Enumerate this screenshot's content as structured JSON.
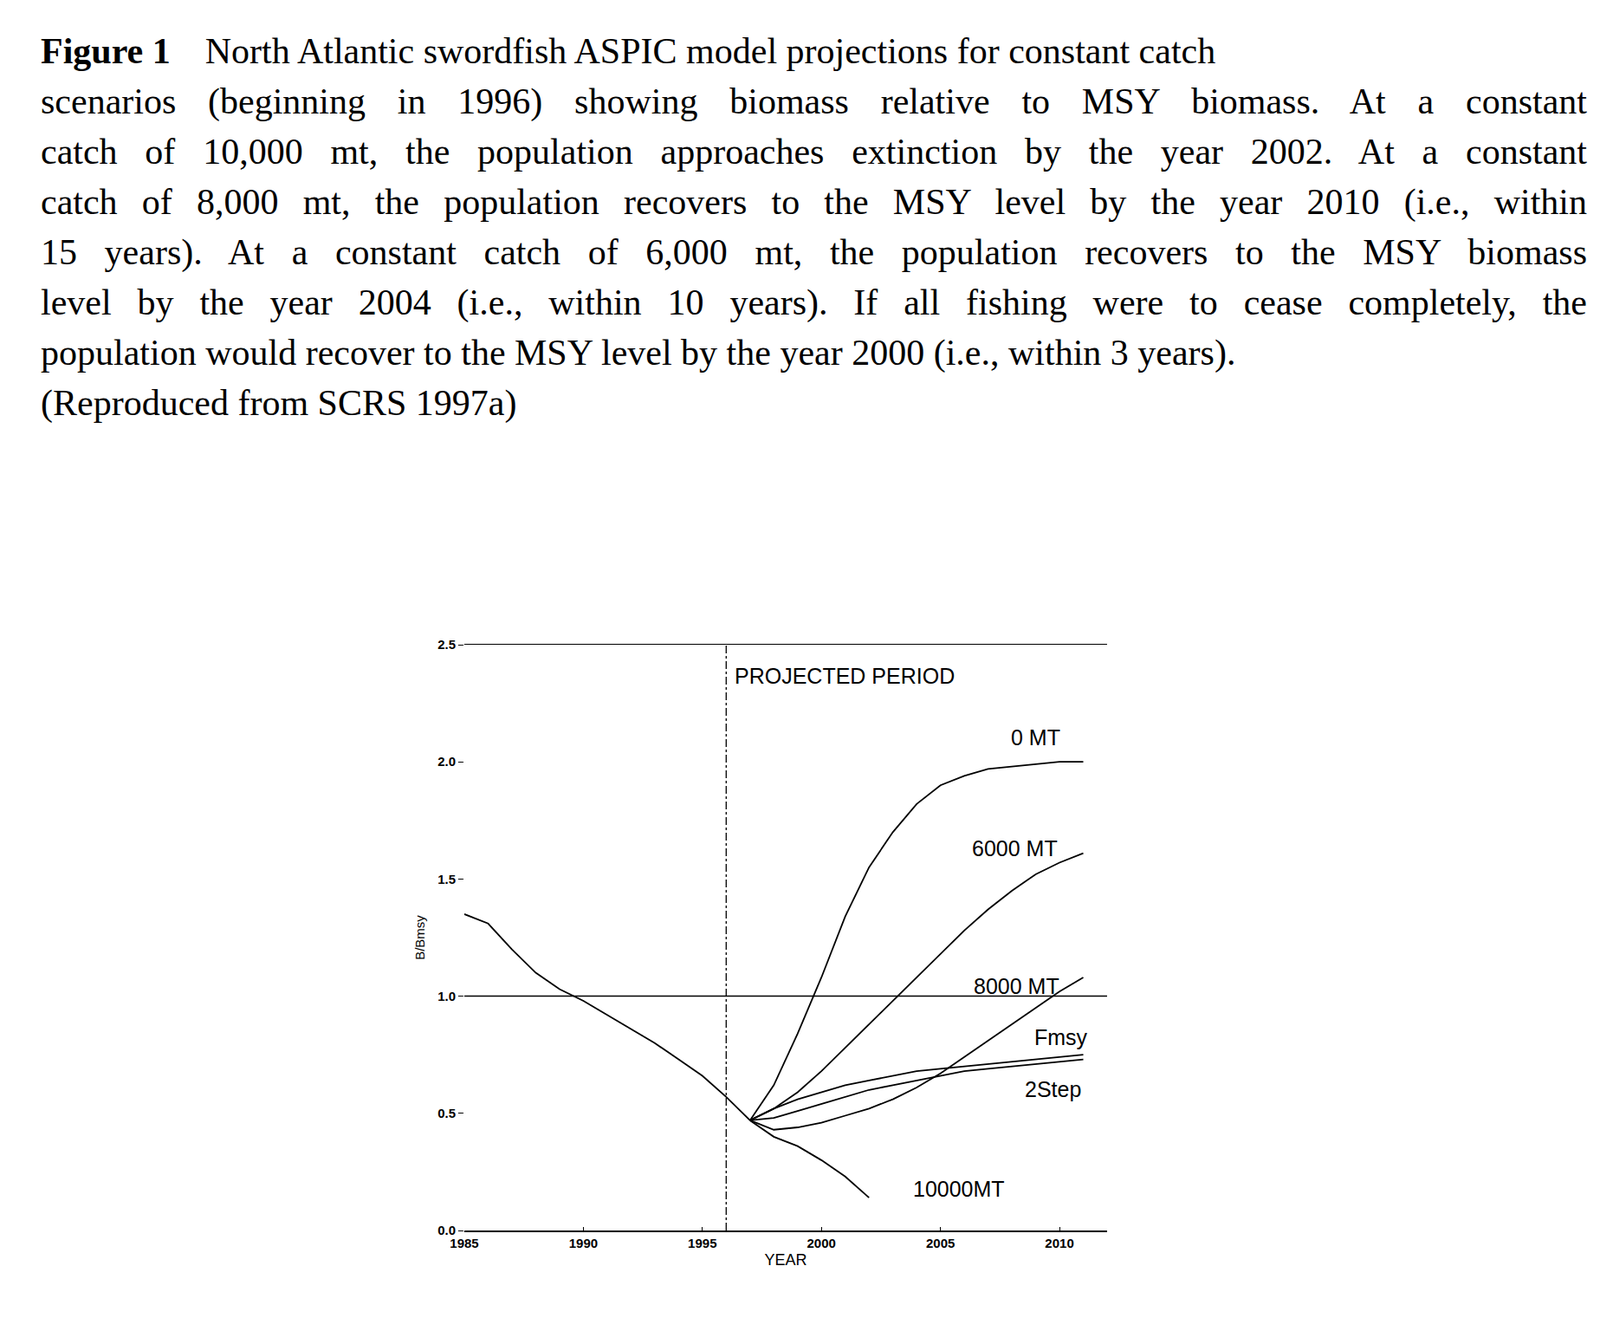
{
  "caption": {
    "label": "Figure 1",
    "lines": [
      "North Atlantic swordfish ASPIC model projections for constant catch",
      "scenarios (beginning in 1996) showing biomass relative to MSY biomass.   At a constant",
      "catch of 10,000 mt, the population approaches extinction by the year 2002.  At a constant",
      "catch of 8,000 mt, the population recovers to the MSY level by the year 2010 (i.e., within",
      "15 years).  At a constant catch of 6,000 mt, the population recovers to the MSY biomass",
      "level by the year 2004 (i.e., within 10 years).  If all fishing were to cease completely, the",
      "population would recover to the MSY level by the year 2000 (i.e., within 3 years).",
      "(Reproduced from SCRS 1997a)"
    ]
  },
  "chart_data": {
    "type": "line",
    "xlabel": "YEAR",
    "ylabel": "B/Bmsy",
    "xlim": [
      1985,
      2012
    ],
    "ylim": [
      0,
      2.5
    ],
    "xticks": [
      1985,
      1990,
      1995,
      2000,
      2005,
      2010
    ],
    "yticks": [
      {
        "value": 0,
        "label": "0.0"
      },
      {
        "value": 0.5,
        "label": "0.5"
      },
      {
        "value": 1,
        "label": "1.0"
      },
      {
        "value": 1.5,
        "label": "1.5"
      },
      {
        "value": 2,
        "label": "2.0"
      },
      {
        "value": 2.5,
        "label": "2.5"
      }
    ],
    "grid": false,
    "hline": 1.0,
    "vline": 1996,
    "annotations": [
      {
        "text": "PROJECTED PERIOD",
        "x": 1996
      }
    ],
    "series": [
      {
        "color": "#000000",
        "line_style": "solid",
        "x": [
          1985,
          1986,
          1987,
          1988,
          1989,
          1990,
          1991,
          1992,
          1993,
          1994,
          1995,
          1996,
          1997
        ],
        "values": [
          1.35,
          1.31,
          1.2,
          1.1,
          1.03,
          0.98,
          0.92,
          0.86,
          0.8,
          0.73,
          0.66,
          0.57,
          0.47
        ]
      },
      {
        "name": "0 MT",
        "color": "#000000",
        "line_style": "solid",
        "x": [
          1997,
          1998,
          1999,
          2000,
          2001,
          2002,
          2003,
          2004,
          2005,
          2006,
          2007,
          2008,
          2009,
          2010,
          2011
        ],
        "values": [
          0.47,
          0.62,
          0.84,
          1.08,
          1.34,
          1.55,
          1.7,
          1.82,
          1.9,
          1.94,
          1.97,
          1.98,
          1.99,
          2.0,
          2.0
        ]
      },
      {
        "name": "6000 MT",
        "color": "#000000",
        "line_style": "solid",
        "x": [
          1997,
          1998,
          1999,
          2000,
          2001,
          2002,
          2003,
          2004,
          2005,
          2006,
          2007,
          2008,
          2009,
          2010,
          2011
        ],
        "values": [
          0.47,
          0.52,
          0.59,
          0.68,
          0.78,
          0.88,
          0.98,
          1.08,
          1.18,
          1.28,
          1.37,
          1.45,
          1.52,
          1.57,
          1.61
        ]
      },
      {
        "name": "8000 MT",
        "color": "#000000",
        "line_style": "solid",
        "x": [
          1997,
          1998,
          1999,
          2000,
          2001,
          2002,
          2003,
          2004,
          2005,
          2006,
          2007,
          2008,
          2009,
          2010,
          2011
        ],
        "values": [
          0.47,
          0.43,
          0.44,
          0.46,
          0.49,
          0.52,
          0.56,
          0.61,
          0.67,
          0.74,
          0.81,
          0.88,
          0.95,
          1.02,
          1.08
        ]
      },
      {
        "name": "Fmsy",
        "color": "#000000",
        "line_style": "solid",
        "x": [
          1997,
          1998,
          1999,
          2000,
          2001,
          2002,
          2003,
          2004,
          2005,
          2006,
          2007,
          2008,
          2009,
          2010,
          2011
        ],
        "values": [
          0.47,
          0.52,
          0.56,
          0.59,
          0.62,
          0.64,
          0.66,
          0.68,
          0.69,
          0.7,
          0.71,
          0.72,
          0.73,
          0.74,
          0.75
        ]
      },
      {
        "name": "2Step",
        "color": "#000000",
        "line_style": "solid",
        "x": [
          1997,
          1998,
          1999,
          2000,
          2001,
          2002,
          2003,
          2004,
          2005,
          2006,
          2007,
          2008,
          2009,
          2010,
          2011
        ],
        "values": [
          0.47,
          0.48,
          0.51,
          0.54,
          0.57,
          0.6,
          0.62,
          0.64,
          0.66,
          0.68,
          0.69,
          0.7,
          0.71,
          0.72,
          0.73
        ]
      },
      {
        "name": "10000MT",
        "color": "#000000",
        "line_style": "solid",
        "x": [
          1997,
          1998,
          1999,
          2000,
          2001,
          2002
        ],
        "values": [
          0.47,
          0.4,
          0.36,
          0.3,
          0.23,
          0.14
        ]
      }
    ]
  }
}
